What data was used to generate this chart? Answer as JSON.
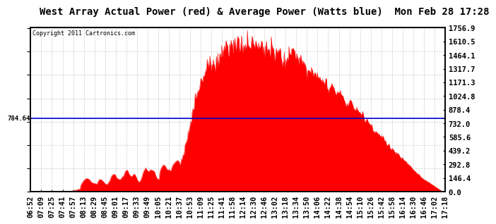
{
  "title": "West Array Actual Power (red) & Average Power (Watts blue)  Mon Feb 28 17:28",
  "copyright": "Copyright 2011 Cartronics.com",
  "ymax": 1756.9,
  "ymin": 0.0,
  "avg_power": 784.64,
  "yticks": [
    0.0,
    146.4,
    292.8,
    439.2,
    585.6,
    732.0,
    784.64,
    878.4,
    1024.8,
    1171.3,
    1317.7,
    1464.1,
    1610.5,
    1756.9
  ],
  "ytick_labels": [
    "0.0",
    "146.4",
    "292.8",
    "439.2",
    "585.6",
    "732.0",
    "",
    "878.4",
    "1024.8",
    "1171.3",
    "1317.7",
    "1464.1",
    "1610.5",
    "1756.9"
  ],
  "xtick_labels": [
    "06:52",
    "07:09",
    "07:25",
    "07:41",
    "07:57",
    "08:13",
    "08:29",
    "08:45",
    "09:01",
    "09:17",
    "09:33",
    "09:49",
    "10:05",
    "10:21",
    "10:37",
    "10:53",
    "11:09",
    "11:25",
    "11:41",
    "11:58",
    "12:14",
    "12:30",
    "12:46",
    "13:02",
    "13:18",
    "13:34",
    "13:50",
    "14:06",
    "14:22",
    "14:38",
    "14:54",
    "15:10",
    "15:26",
    "15:42",
    "15:58",
    "16:14",
    "16:30",
    "16:46",
    "17:02",
    "17:18"
  ],
  "fill_color": "#FF0000",
  "line_color": "#FF0000",
  "avg_line_color": "#0000CC",
  "bg_color": "#FFFFFF",
  "grid_color": "#CCCCCC",
  "title_fontsize": 10,
  "tick_fontsize": 7.5,
  "n_xticks": 40
}
